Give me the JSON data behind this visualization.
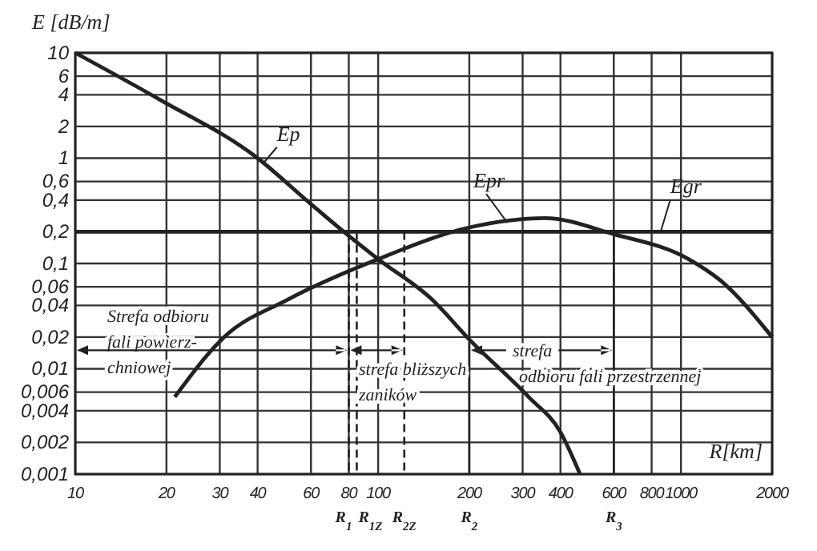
{
  "chart_data": {
    "type": "line",
    "ylabel": "E [dB/m]",
    "xlabel": "R[km]",
    "log": "xy",
    "grid": true,
    "marker": "none",
    "line_style": "solid",
    "legend": false,
    "xlim": [
      10,
      2000
    ],
    "xticks": [
      10,
      20,
      30,
      40,
      60,
      80,
      100,
      200,
      300,
      400,
      600,
      800,
      1000,
      2000
    ],
    "ylim": [
      0.001,
      10
    ],
    "yticks": [
      {
        "value": 10,
        "label": "10"
      },
      {
        "value": 6,
        "label": "6"
      },
      {
        "value": 4,
        "label": "4"
      },
      {
        "value": 2,
        "label": "2"
      },
      {
        "value": 1,
        "label": "1"
      },
      {
        "value": 0.6,
        "label": "0,6"
      },
      {
        "value": 0.4,
        "label": "0,4"
      },
      {
        "value": 0.2,
        "label": "0,2"
      },
      {
        "value": 0.1,
        "label": "0,1"
      },
      {
        "value": 0.06,
        "label": "0,06"
      },
      {
        "value": 0.04,
        "label": "0,04"
      },
      {
        "value": 0.02,
        "label": "0,02"
      },
      {
        "value": 0.01,
        "label": "0,01"
      },
      {
        "value": 0.006,
        "label": "0,006"
      },
      {
        "value": 0.004,
        "label": "0,004"
      },
      {
        "value": 0.002,
        "label": "0,002"
      },
      {
        "value": 0.001,
        "label": "0,001"
      }
    ],
    "series": [
      {
        "name": "Ep",
        "color": "#222222",
        "x": [
          10,
          19,
          40,
          58.5,
          77,
          100,
          150,
          200,
          314,
          400,
          464
        ],
        "values": [
          10,
          3.6,
          1,
          0.39,
          0.2,
          0.11,
          0.046,
          0.019,
          0.0054,
          0.0025,
          0.001
        ]
      },
      {
        "name": "Epr",
        "color": "#222222",
        "x": [
          21.3,
          31,
          50,
          100,
          200,
          355,
          600,
          1060,
          1350,
          2000
        ],
        "values": [
          0.0054,
          0.02,
          0.045,
          0.11,
          0.22,
          0.27,
          0.19,
          0.11,
          0.069,
          0.02
        ]
      },
      {
        "name": "Egr",
        "color": "#222222",
        "x": [
          10,
          2000
        ],
        "values": [
          0.2,
          0.2
        ]
      }
    ],
    "ref_lines": [
      {
        "axis": "x",
        "value": 80,
        "label": "R$_{1}$",
        "line_style": "dashed"
      },
      {
        "axis": "x",
        "value": 85,
        "label": "R$_{1Z}$",
        "line_style": "dashed"
      },
      {
        "axis": "x",
        "value": 122,
        "label": "R$_{2Z}$",
        "line_style": "dashed"
      },
      {
        "axis": "x",
        "value": 200,
        "label": "R$_{2}$",
        "line_style": "solid"
      },
      {
        "axis": "x",
        "value": 600,
        "label": "R$_{3}$",
        "line_style": "solid"
      }
    ],
    "annotations": [
      "Strefa odbioru\nfali powierz-\nchniowej",
      "strefa bliższych\nzaników",
      "strefa\nodbioru fali przestrzennej"
    ]
  }
}
